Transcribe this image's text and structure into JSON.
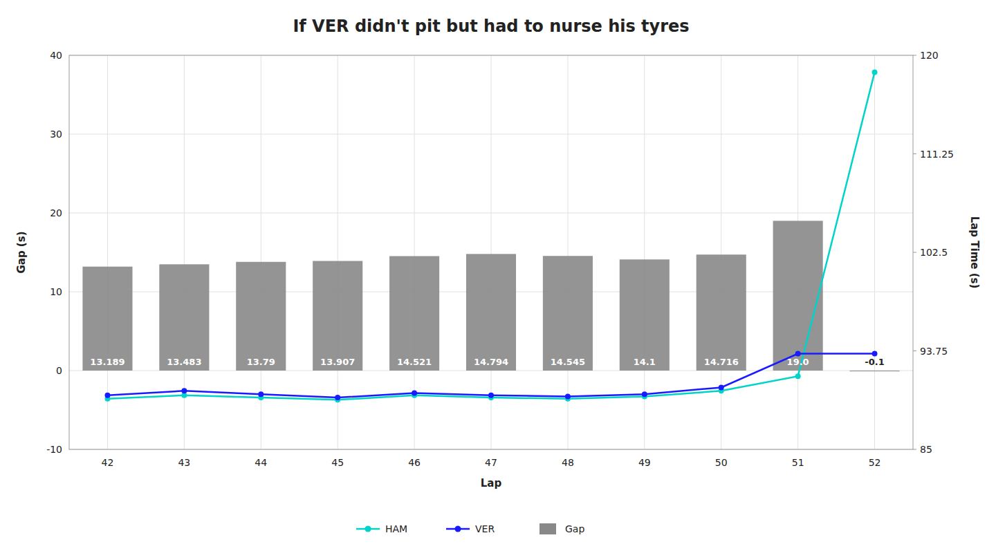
{
  "chart_data": {
    "type": "bar",
    "title": "If VER didn't pit but had to nurse his tyres",
    "x_label": "Lap",
    "y_label": "Gap (s)",
    "y2_label": "Lap Time (s)",
    "x": [
      42,
      43,
      44,
      45,
      46,
      47,
      48,
      49,
      50,
      51,
      52
    ],
    "xlim": [
      41.5,
      52.5
    ],
    "xticks": [
      42,
      43,
      44,
      45,
      46,
      47,
      48,
      49,
      50,
      51,
      52
    ],
    "ylim": [
      -10,
      40
    ],
    "yticks": [
      -10,
      0,
      10,
      20,
      30,
      40
    ],
    "y2lim": [
      85,
      120
    ],
    "y2ticks": [
      85,
      93.75,
      102.5,
      111.25,
      120
    ],
    "grid": true,
    "legend": "bottom",
    "series": [
      {
        "name": "HAM",
        "type": "line",
        "axis": "y2",
        "color": "#00d4c8",
        "marker": "circle",
        "line_style": "solid",
        "values": [
          89.5,
          89.8,
          89.6,
          89.4,
          89.8,
          89.6,
          89.5,
          89.7,
          90.2,
          91.5,
          118.5
        ]
      },
      {
        "name": "VER",
        "type": "line",
        "axis": "y2",
        "color": "#1a1aff",
        "marker": "circle",
        "line_style": "solid",
        "values": [
          89.8,
          90.2,
          89.9,
          89.6,
          90.0,
          89.8,
          89.7,
          89.9,
          90.5,
          93.5,
          93.5
        ]
      },
      {
        "name": "Gap",
        "type": "bar",
        "color": "#888888",
        "data_labels": true,
        "values": [
          13.189,
          13.483,
          13.79,
          13.907,
          14.521,
          14.794,
          14.545,
          14.1,
          14.716,
          19.0,
          -0.1
        ],
        "value_labels": [
          "13.189",
          "13.483",
          "13.79",
          "13.907",
          "14.521",
          "14.794",
          "14.545",
          "14.1",
          "14.716",
          "19.0",
          "-0.1"
        ]
      }
    ]
  }
}
